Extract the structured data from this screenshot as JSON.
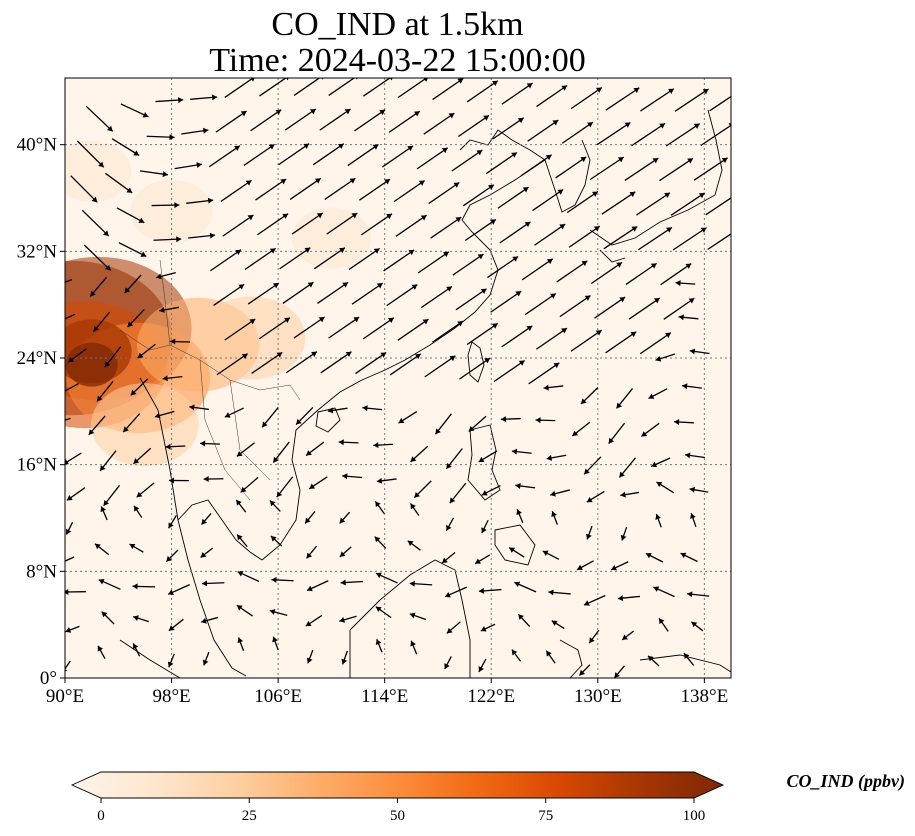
{
  "title": {
    "line1": "CO_IND at 1.5km",
    "line2": "Time: 2024-03-22 15:00:00"
  },
  "map": {
    "extent": {
      "lon_min": 90,
      "lon_max": 140,
      "lat_min": 0,
      "lat_max": 45
    },
    "lon_ticks": [
      {
        "value": 90,
        "label": "90°E"
      },
      {
        "value": 98,
        "label": "98°E"
      },
      {
        "value": 106,
        "label": "106°E"
      },
      {
        "value": 114,
        "label": "114°E"
      },
      {
        "value": 122,
        "label": "122°E"
      },
      {
        "value": 130,
        "label": "130°E"
      },
      {
        "value": 138,
        "label": "138°E"
      }
    ],
    "lat_ticks": [
      {
        "value": 0,
        "label": "0°"
      },
      {
        "value": 8,
        "label": "8°N"
      },
      {
        "value": 16,
        "label": "16°N"
      },
      {
        "value": 24,
        "label": "24°N"
      },
      {
        "value": 32,
        "label": "32°N"
      },
      {
        "value": 40,
        "label": "40°N"
      }
    ],
    "gridlines": true,
    "field_hotspots": [
      {
        "lon": 90.5,
        "lat": 25.5,
        "value": 95
      },
      {
        "lon": 92.5,
        "lat": 26.2,
        "value": 85
      },
      {
        "lon": 91.5,
        "lat": 23.5,
        "value": 70
      },
      {
        "lon": 95.5,
        "lat": 22.5,
        "value": 55
      },
      {
        "lon": 100.0,
        "lat": 25.0,
        "value": 40
      },
      {
        "lon": 104.0,
        "lat": 25.5,
        "value": 30
      },
      {
        "lon": 96.0,
        "lat": 19.0,
        "value": 30
      },
      {
        "lon": 98.0,
        "lat": 35.0,
        "value": 12
      },
      {
        "lon": 110.0,
        "lat": 33.0,
        "value": 10
      },
      {
        "lon": 92.0,
        "lat": 38.0,
        "value": 10
      }
    ]
  },
  "colorbar": {
    "title": "CO_IND (ppbv)",
    "min": 0,
    "max": 100,
    "ticks": [
      {
        "value": 0,
        "label": "0"
      },
      {
        "value": 25,
        "label": "25"
      },
      {
        "value": 50,
        "label": "50"
      },
      {
        "value": 75,
        "label": "75"
      },
      {
        "value": 100,
        "label": "100"
      }
    ],
    "extend": "both",
    "colors": [
      "#fff5eb",
      "#fee6ce",
      "#fdd0a2",
      "#fdae6b",
      "#fd8d3c",
      "#f16913",
      "#d94801",
      "#a63603",
      "#7f2704"
    ]
  }
}
